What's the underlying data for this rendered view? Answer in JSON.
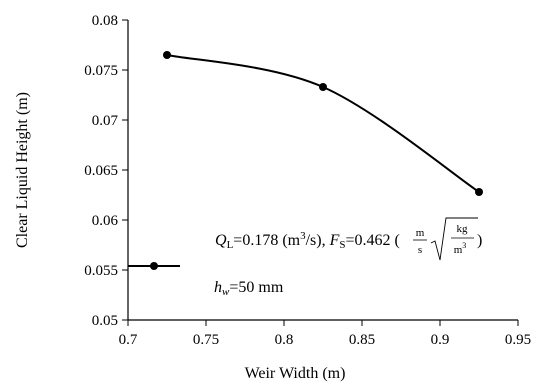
{
  "chart_data": {
    "type": "line",
    "xlabel": "Weir Width (m)",
    "ylabel": "Clear Liquid Height (m)",
    "xlim": [
      0.7,
      0.95
    ],
    "ylim": [
      0.05,
      0.08
    ],
    "x_ticks": [
      "0.7",
      "0.75",
      "0.8",
      "0.85",
      "0.9",
      "0.95"
    ],
    "y_ticks": [
      "0.05",
      "0.055",
      "0.06",
      "0.065",
      "0.07",
      "0.075",
      "0.08"
    ],
    "grid": false,
    "legend_position": "bottom-left",
    "series": [
      {
        "name_symbol": "h",
        "name_subscript": "w",
        "name_value": "=50 mm",
        "x": [
          0.725,
          0.825,
          0.925
        ],
        "y": [
          0.0765,
          0.0733,
          0.0628
        ],
        "color": "#000000"
      }
    ],
    "annotation": {
      "q_symbol": "Q",
      "q_subscript": "L",
      "q_value": "=0.178 (m",
      "q_sup": "3",
      "q_unit_end": "/s), ",
      "f_symbol": "F",
      "f_subscript": "S",
      "f_value": "=0.462 (",
      "f_num_m": "m",
      "f_den_s": "s",
      "f_num_kg": "kg",
      "f_den_m": "m",
      "f_den_sup": "3",
      "f_close": ")"
    }
  }
}
